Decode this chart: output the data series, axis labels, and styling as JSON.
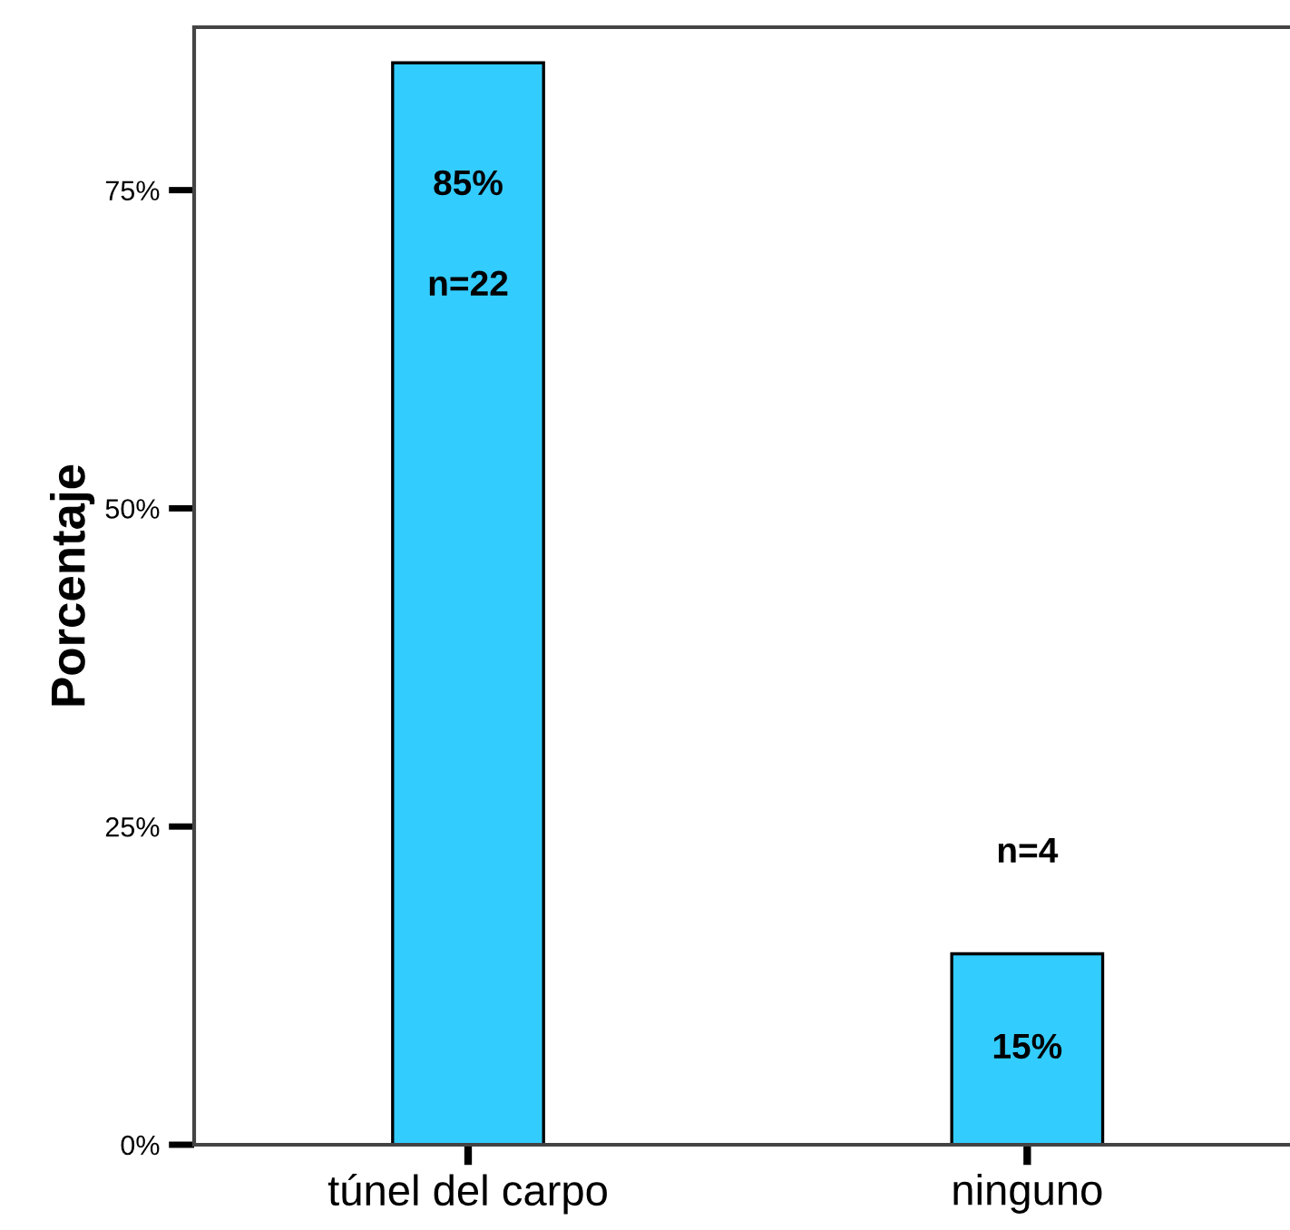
{
  "chart_data": {
    "type": "bar",
    "ylabel": "Porcentaje",
    "categories": [
      "túnel del carpo",
      "ninguno"
    ],
    "values": [
      85,
      15
    ],
    "color": "#33ccff",
    "value_labels": [
      "85%",
      "15%"
    ],
    "annotations": [
      "n=22",
      "n=4"
    ],
    "ylim": [
      0,
      87.8
    ],
    "yticks": [
      {
        "value": 0,
        "label": "0%"
      },
      {
        "value": 25,
        "label": "25%"
      },
      {
        "value": 50,
        "label": "50%"
      },
      {
        "value": 75,
        "label": "75%"
      }
    ],
    "grid": false,
    "legend": false
  }
}
